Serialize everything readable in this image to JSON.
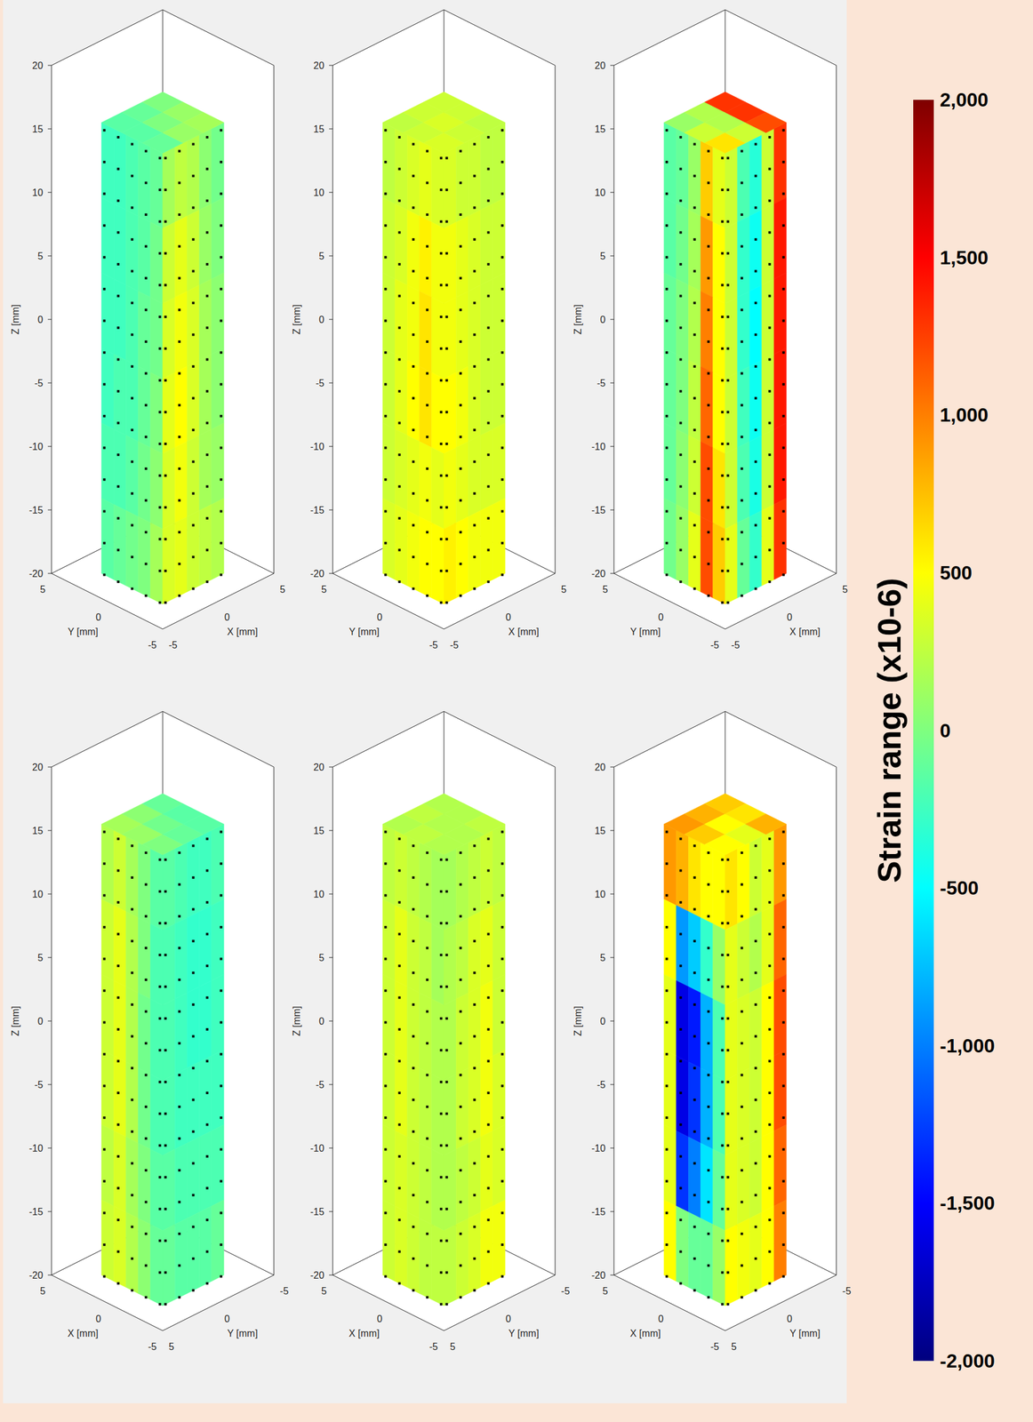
{
  "chart_data": {
    "type": "heatmap3d",
    "colorbar": {
      "label": "Strain range (x10-6)",
      "range": [
        -2000,
        2000
      ],
      "ticks": [
        2000,
        1500,
        1000,
        500,
        0,
        -500,
        -1000,
        -1500,
        -2000
      ]
    },
    "measurement_points": {
      "across": [
        -2.5,
        -1.25,
        0,
        1.25,
        2.5
      ],
      "z": [
        -20,
        -17.5,
        -15,
        -12.5,
        -10,
        -7.5,
        -5,
        -2.5,
        0,
        2.5,
        5,
        7.5,
        10,
        12.5,
        15
      ]
    },
    "panels": [
      {
        "xlabel": "X [mm]",
        "ylabel": "Y [mm]",
        "zlabel": "Z [mm]",
        "left_axis": "y",
        "right_axis": "x",
        "xlim": [
          -5,
          5
        ],
        "ylim": [
          5,
          -5
        ],
        "zlim": [
          -20,
          20
        ],
        "xticks": [
          -5,
          0,
          5
        ],
        "yticks": [
          5,
          0,
          -5
        ],
        "zticks": [
          -20,
          -15,
          -10,
          -5,
          0,
          5,
          10,
          15,
          20
        ],
        "specimen": {
          "x": [
            -2.75,
            2.75
          ],
          "y": [
            -2.75,
            2.75
          ],
          "z": [
            -20,
            15.5
          ]
        },
        "left_face": [
          [
            -250,
            -250,
            -200,
            -150,
            -100
          ],
          [
            -250,
            -250,
            -200,
            -150,
            -50
          ],
          [
            -250,
            -250,
            -200,
            -100,
            -50
          ],
          [
            -250,
            -200,
            -200,
            -100,
            0
          ],
          [
            -200,
            -200,
            -150,
            -50,
            50
          ],
          [
            -150,
            -100,
            -50,
            0,
            150
          ]
        ],
        "right_face": [
          [
            150,
            250,
            200,
            50,
            -50
          ],
          [
            300,
            400,
            300,
            100,
            0
          ],
          [
            350,
            450,
            350,
            150,
            50
          ],
          [
            400,
            500,
            350,
            150,
            50
          ],
          [
            350,
            450,
            300,
            150,
            100
          ],
          [
            350,
            400,
            300,
            250,
            200
          ]
        ],
        "top_face": [
          [
            -150,
            -100,
            0
          ],
          [
            -150,
            0,
            100
          ],
          [
            -100,
            100,
            150
          ]
        ]
      },
      {
        "xlabel": "X [mm]",
        "ylabel": "Y [mm]",
        "zlabel": "Z [mm]",
        "left_axis": "y",
        "right_axis": "x",
        "xlim": [
          -5,
          5
        ],
        "ylim": [
          5,
          -5
        ],
        "zlim": [
          -20,
          20
        ],
        "xticks": [
          -5,
          0,
          5
        ],
        "yticks": [
          5,
          0,
          -5
        ],
        "zticks": [
          -20,
          -15,
          -10,
          -5,
          0,
          5,
          10,
          15,
          20
        ],
        "specimen": {
          "x": [
            -2.75,
            2.75
          ],
          "y": [
            -2.75,
            2.75
          ],
          "z": [
            -20,
            15.5
          ]
        },
        "left_face": [
          [
            250,
            300,
            350,
            400,
            350
          ],
          [
            300,
            350,
            450,
            550,
            450
          ],
          [
            300,
            400,
            450,
            600,
            450
          ],
          [
            300,
            400,
            500,
            600,
            500
          ],
          [
            300,
            350,
            400,
            450,
            400
          ],
          [
            350,
            400,
            450,
            500,
            500
          ]
        ],
        "right_face": [
          [
            350,
            300,
            300,
            250,
            250
          ],
          [
            450,
            400,
            350,
            300,
            300
          ],
          [
            450,
            400,
            350,
            300,
            300
          ],
          [
            500,
            450,
            350,
            300,
            300
          ],
          [
            450,
            400,
            350,
            350,
            350
          ],
          [
            550,
            500,
            450,
            450,
            450
          ]
        ],
        "top_face": [
          [
            250,
            300,
            300
          ],
          [
            300,
            350,
            300
          ],
          [
            350,
            300,
            250
          ]
        ]
      },
      {
        "xlabel": "X [mm]",
        "ylabel": "Y [mm]",
        "zlabel": "Z [mm]",
        "left_axis": "y",
        "right_axis": "x",
        "xlim": [
          -5,
          5
        ],
        "ylim": [
          5,
          -5
        ],
        "zlim": [
          -20,
          20
        ],
        "xticks": [
          -5,
          0,
          5
        ],
        "yticks": [
          5,
          0,
          -5
        ],
        "zticks": [
          -20,
          -15,
          -10,
          -5,
          0,
          5,
          10,
          15,
          20
        ],
        "specimen": {
          "x": [
            -2.75,
            2.75
          ],
          "y": [
            -2.75,
            2.75
          ],
          "z": [
            -20,
            15.5
          ]
        },
        "left_face": [
          [
            -150,
            -100,
            100,
            700,
            400
          ],
          [
            -150,
            -50,
            150,
            900,
            500
          ],
          [
            -100,
            0,
            200,
            1000,
            500
          ],
          [
            -100,
            0,
            250,
            1100,
            500
          ],
          [
            -100,
            50,
            300,
            1200,
            600
          ],
          [
            -50,
            100,
            400,
            1200,
            700
          ]
        ],
        "right_face": [
          [
            300,
            -200,
            -350,
            300,
            1300
          ],
          [
            300,
            -300,
            -450,
            300,
            1400
          ],
          [
            300,
            -300,
            -500,
            300,
            1400
          ],
          [
            300,
            -250,
            -450,
            300,
            1400
          ],
          [
            300,
            -200,
            -400,
            300,
            1400
          ],
          [
            400,
            -100,
            -300,
            400,
            1300
          ]
        ],
        "top_face": [
          [
            100,
            200,
            1300
          ],
          [
            300,
            200,
            1300
          ],
          [
            600,
            300,
            1200
          ]
        ]
      },
      {
        "xlabel": "X [mm]",
        "ylabel": "Y [mm]",
        "zlabel": "Z [mm]",
        "left_axis": "x",
        "right_axis": "y",
        "xlim": [
          5,
          -5
        ],
        "ylim": [
          5,
          -5
        ],
        "zlim": [
          -20,
          20
        ],
        "xticks": [
          5,
          0,
          -5
        ],
        "yticks": [
          5,
          0,
          -5
        ],
        "zticks": [
          -20,
          -15,
          -10,
          -5,
          0,
          5,
          10,
          15,
          20
        ],
        "specimen": {
          "x": [
            -2.75,
            2.75
          ],
          "y": [
            -2.75,
            2.75
          ],
          "z": [
            -20,
            15.5
          ]
        },
        "left_face": [
          [
            200,
            300,
            150,
            0,
            -150
          ],
          [
            300,
            400,
            200,
            0,
            -200
          ],
          [
            300,
            400,
            200,
            -50,
            -200
          ],
          [
            300,
            400,
            200,
            -50,
            -200
          ],
          [
            250,
            350,
            150,
            0,
            -150
          ],
          [
            300,
            350,
            200,
            50,
            -100
          ]
        ],
        "right_face": [
          [
            -150,
            -200,
            -250,
            -250,
            -200
          ],
          [
            -200,
            -250,
            -300,
            -300,
            -250
          ],
          [
            -200,
            -250,
            -300,
            -300,
            -250
          ],
          [
            -200,
            -250,
            -250,
            -250,
            -250
          ],
          [
            -150,
            -200,
            -200,
            -200,
            -200
          ],
          [
            -100,
            -150,
            -150,
            -150,
            -100
          ]
        ],
        "top_face": [
          [
            150,
            50,
            -100
          ],
          [
            100,
            -50,
            -150
          ],
          [
            0,
            -100,
            -150
          ]
        ]
      },
      {
        "xlabel": "X [mm]",
        "ylabel": "Y [mm]",
        "zlabel": "Z [mm]",
        "left_axis": "x",
        "right_axis": "y",
        "xlim": [
          5,
          -5
        ],
        "ylim": [
          5,
          -5
        ],
        "zlim": [
          -20,
          20
        ],
        "xticks": [
          5,
          0,
          -5
        ],
        "yticks": [
          5,
          0,
          -5
        ],
        "zticks": [
          -20,
          -15,
          -10,
          -5,
          0,
          5,
          10,
          15,
          20
        ],
        "specimen": {
          "x": [
            -2.75,
            2.75
          ],
          "y": [
            -2.75,
            2.75
          ],
          "z": [
            -20,
            15.5
          ]
        },
        "left_face": [
          [
            250,
            300,
            250,
            200,
            150
          ],
          [
            300,
            400,
            300,
            250,
            150
          ],
          [
            300,
            400,
            300,
            250,
            200
          ],
          [
            300,
            400,
            300,
            250,
            200
          ],
          [
            300,
            350,
            300,
            250,
            200
          ],
          [
            300,
            350,
            300,
            250,
            250
          ]
        ],
        "right_face": [
          [
            150,
            200,
            250,
            300,
            250
          ],
          [
            200,
            250,
            350,
            400,
            300
          ],
          [
            200,
            300,
            350,
            450,
            300
          ],
          [
            200,
            300,
            350,
            450,
            350
          ],
          [
            200,
            250,
            300,
            400,
            350
          ],
          [
            250,
            300,
            350,
            450,
            450
          ]
        ],
        "top_face": [
          [
            200,
            250,
            200
          ],
          [
            250,
            200,
            200
          ],
          [
            200,
            200,
            250
          ]
        ]
      },
      {
        "xlabel": "X [mm]",
        "ylabel": "Y [mm]",
        "zlabel": "Z [mm]",
        "left_axis": "x",
        "right_axis": "y",
        "xlim": [
          5,
          -5
        ],
        "ylim": [
          5,
          -5
        ],
        "zlim": [
          -20,
          20
        ],
        "xticks": [
          5,
          0,
          -5
        ],
        "yticks": [
          5,
          0,
          -5
        ],
        "zticks": [
          -20,
          -15,
          -10,
          -5,
          0,
          5,
          10,
          15,
          20
        ],
        "specimen": {
          "x": [
            -2.75,
            2.75
          ],
          "y": [
            -2.75,
            2.75
          ],
          "z": [
            -20,
            15.5
          ]
        },
        "left_face": [
          [
            900,
            800,
            600,
            500,
            500
          ],
          [
            500,
            -900,
            -700,
            -300,
            100
          ],
          [
            400,
            -1600,
            -1400,
            -800,
            -200
          ],
          [
            400,
            -1600,
            -1300,
            -800,
            -200
          ],
          [
            400,
            -1300,
            -1000,
            -600,
            -100
          ],
          [
            500,
            0,
            -100,
            -100,
            100
          ]
        ],
        "right_face": [
          [
            600,
            500,
            300,
            400,
            900
          ],
          [
            400,
            300,
            200,
            400,
            1100
          ],
          [
            400,
            350,
            300,
            500,
            1200
          ],
          [
            400,
            350,
            300,
            500,
            1200
          ],
          [
            400,
            350,
            300,
            500,
            1100
          ],
          [
            500,
            450,
            400,
            500,
            1000
          ]
        ],
        "top_face": [
          [
            900,
            800,
            700
          ],
          [
            700,
            500,
            600
          ],
          [
            500,
            400,
            800
          ]
        ]
      }
    ]
  }
}
